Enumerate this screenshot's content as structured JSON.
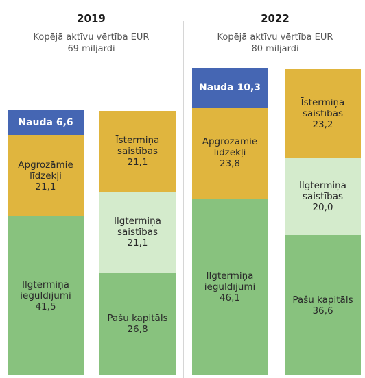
{
  "colors": {
    "cash": "#4566b3",
    "current_assets": "#e0b53e",
    "long_term_investments": "#88c27e",
    "short_term_liabilities": "#e0b53e",
    "long_term_liabilities": "#d4ebcc",
    "equity": "#88c27e"
  },
  "chart_data": [
    {
      "type": "bar",
      "title": "2019",
      "subtitle_line1": "Kopējā aktīvu vērtība EUR",
      "subtitle_line2": "69 miljardi",
      "stacks": [
        {
          "name": "assets",
          "segments": [
            {
              "key": "long_term_investments",
              "label_line1": "Ilgtermiņa",
              "label_line2": "ieguldījumi",
              "value": 41.5,
              "value_text": "41,5"
            },
            {
              "key": "current_assets",
              "label_line1": "Apgrozāmie",
              "label_line2": "līdzekļi",
              "value": 21.1,
              "value_text": "21,1"
            },
            {
              "key": "cash",
              "label_line1": "Nauda 6,6",
              "label_line2": "",
              "value": 6.6,
              "value_text": ""
            }
          ]
        },
        {
          "name": "liabilities",
          "segments": [
            {
              "key": "equity",
              "label_line1": "Pašu kapitāls",
              "label_line2": "",
              "value": 26.8,
              "value_text": "26,8"
            },
            {
              "key": "long_term_liabilities",
              "label_line1": "Ilgtermiņa",
              "label_line2": "saistības",
              "value": 21.1,
              "value_text": "21,1"
            },
            {
              "key": "short_term_liabilities",
              "label_line1": "Īstermiņa",
              "label_line2": "saistības",
              "value": 21.1,
              "value_text": "21,1"
            }
          ]
        }
      ]
    },
    {
      "type": "bar",
      "title": "2022",
      "subtitle_line1": "Kopējā aktīvu vērtība EUR",
      "subtitle_line2": "80 miljardi",
      "stacks": [
        {
          "name": "assets",
          "segments": [
            {
              "key": "long_term_investments",
              "label_line1": "Ilgtermiņa",
              "label_line2": "ieguldījumi",
              "value": 46.1,
              "value_text": "46,1"
            },
            {
              "key": "current_assets",
              "label_line1": "Apgrozāmie",
              "label_line2": "līdzekļi",
              "value": 23.8,
              "value_text": "23,8"
            },
            {
              "key": "cash",
              "label_line1": "Nauda 10,3",
              "label_line2": "",
              "value": 10.3,
              "value_text": ""
            }
          ]
        },
        {
          "name": "liabilities",
          "segments": [
            {
              "key": "equity",
              "label_line1": "Pašu kapitāls",
              "label_line2": "",
              "value": 36.6,
              "value_text": "36,6"
            },
            {
              "key": "long_term_liabilities",
              "label_line1": "Ilgtermiņa",
              "label_line2": "saistības",
              "value": 20.0,
              "value_text": "20,0"
            },
            {
              "key": "short_term_liabilities",
              "label_line1": "Īstermiņa",
              "label_line2": "saistības",
              "value": 23.2,
              "value_text": "23,2"
            }
          ]
        }
      ]
    }
  ]
}
